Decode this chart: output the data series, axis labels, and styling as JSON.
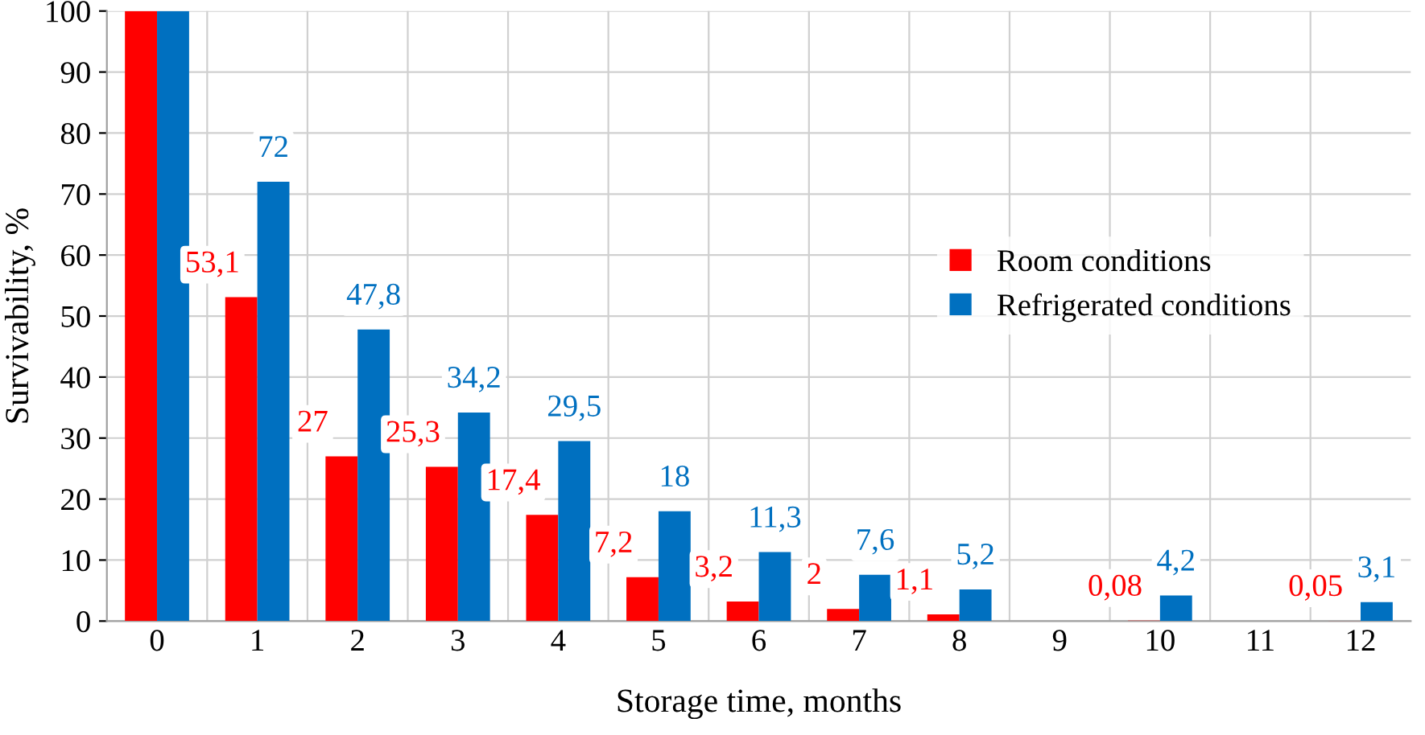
{
  "chart_data": {
    "type": "bar",
    "xlabel": "Storage time, months",
    "ylabel": "Survivability, %",
    "categories": [
      "0",
      "1",
      "2",
      "3",
      "4",
      "5",
      "6",
      "7",
      "8",
      "9",
      "10",
      "11",
      "12"
    ],
    "series": [
      {
        "name": "Room conditions",
        "color": "#ff0000",
        "values": [
          100,
          53.1,
          27,
          25.3,
          17.4,
          7.2,
          3.2,
          2,
          1.1,
          null,
          0.08,
          null,
          0.05
        ],
        "value_labels": [
          null,
          "53,1",
          "27",
          "25,3",
          "17,4",
          "7,2",
          "3,2",
          "2",
          "1,1",
          null,
          "0,08",
          null,
          "0,05"
        ]
      },
      {
        "name": "Refrigerated conditions",
        "color": "#0070c0",
        "values": [
          100,
          72,
          47.8,
          34.2,
          29.5,
          18,
          11.3,
          7.6,
          5.2,
          null,
          4.2,
          null,
          3.1
        ],
        "value_labels": [
          null,
          "72",
          "47,8",
          "34,2",
          "29,5",
          "18",
          "11,3",
          "7,6",
          "5,2",
          null,
          "4,2",
          null,
          "3,1"
        ]
      }
    ],
    "ylim": [
      0,
      100
    ],
    "yticks": [
      0,
      10,
      20,
      30,
      40,
      50,
      60,
      70,
      80,
      90,
      100
    ],
    "grid": true,
    "legend": "right"
  }
}
